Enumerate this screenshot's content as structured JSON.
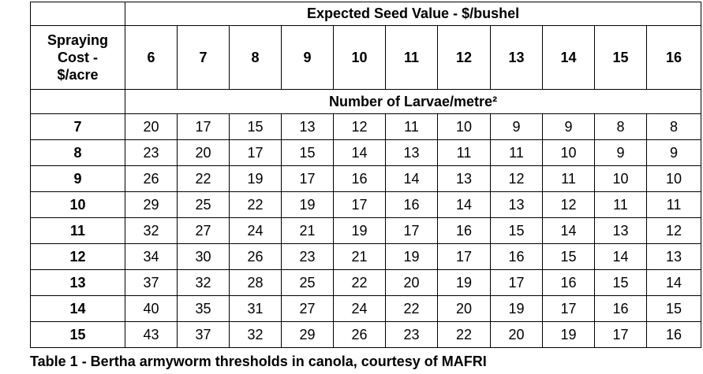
{
  "table": {
    "title": "Expected Seed Value - $/bushel",
    "stub_header": [
      "Spraying",
      "Cost -",
      "$/acre"
    ],
    "seed_values": [
      "6",
      "7",
      "8",
      "9",
      "10",
      "11",
      "12",
      "13",
      "14",
      "15",
      "16"
    ],
    "subheader": "Number of Larvae/metre²",
    "rows": [
      {
        "cost": "7",
        "values": [
          "20",
          "17",
          "15",
          "13",
          "12",
          "11",
          "10",
          "9",
          "9",
          "8",
          "8"
        ]
      },
      {
        "cost": "8",
        "values": [
          "23",
          "20",
          "17",
          "15",
          "14",
          "13",
          "11",
          "11",
          "10",
          "9",
          "9"
        ]
      },
      {
        "cost": "9",
        "values": [
          "26",
          "22",
          "19",
          "17",
          "16",
          "14",
          "13",
          "12",
          "11",
          "10",
          "10"
        ]
      },
      {
        "cost": "10",
        "values": [
          "29",
          "25",
          "22",
          "19",
          "17",
          "16",
          "14",
          "13",
          "12",
          "11",
          "11"
        ]
      },
      {
        "cost": "11",
        "values": [
          "32",
          "27",
          "24",
          "21",
          "19",
          "17",
          "16",
          "15",
          "14",
          "13",
          "12"
        ]
      },
      {
        "cost": "12",
        "values": [
          "34",
          "30",
          "26",
          "23",
          "21",
          "19",
          "17",
          "16",
          "15",
          "14",
          "13"
        ]
      },
      {
        "cost": "13",
        "values": [
          "37",
          "32",
          "28",
          "25",
          "22",
          "20",
          "19",
          "17",
          "16",
          "15",
          "14"
        ]
      },
      {
        "cost": "14",
        "values": [
          "40",
          "35",
          "31",
          "27",
          "24",
          "22",
          "20",
          "19",
          "17",
          "16",
          "15"
        ]
      },
      {
        "cost": "15",
        "values": [
          "43",
          "37",
          "32",
          "29",
          "26",
          "23",
          "22",
          "20",
          "19",
          "17",
          "16"
        ]
      }
    ]
  },
  "caption": "Table 1 - Bertha armyworm thresholds in canola, courtesy of MAFRI"
}
